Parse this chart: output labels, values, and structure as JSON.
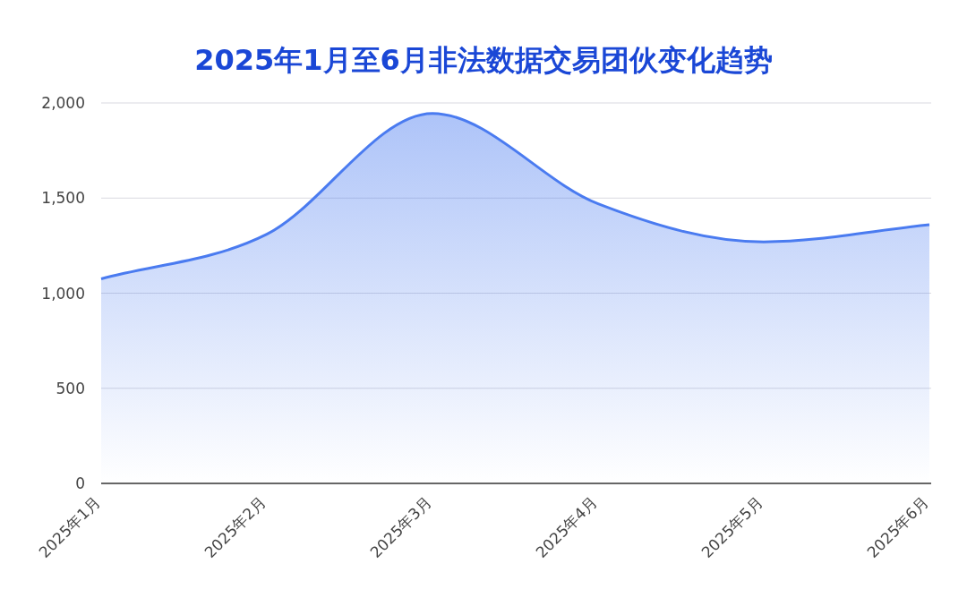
{
  "chart_data": {
    "type": "area",
    "title": "2025年1月至6月非法数据交易团伙变化趋势",
    "categories": [
      "2025年1月",
      "2025年2月",
      "2025年3月",
      "2025年4月",
      "2025年5月",
      "2025年6月"
    ],
    "values": [
      1075,
      1310,
      1945,
      1470,
      1270,
      1360
    ],
    "color": "#4a7bf0",
    "ylim": [
      0,
      2000
    ],
    "yticks": [
      {
        "value": 0,
        "label": "0"
      },
      {
        "value": 500,
        "label": "500"
      },
      {
        "value": 1000,
        "label": "1,000"
      },
      {
        "value": 1500,
        "label": "1,500"
      },
      {
        "value": 2000,
        "label": "2,000"
      }
    ],
    "grid": "y"
  }
}
